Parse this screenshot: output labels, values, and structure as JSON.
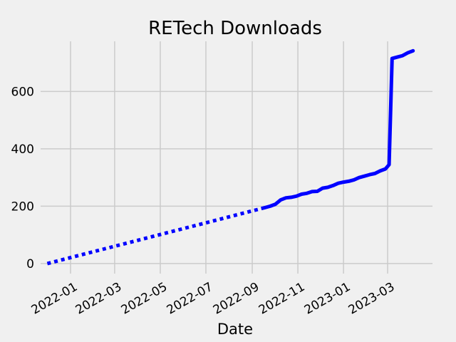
{
  "chart_data": {
    "type": "line",
    "title": "RETech Downloads",
    "xlabel": "Date",
    "ylabel": "",
    "x_axis_type": "date",
    "xlim": [
      "2021-11-22",
      "2023-04-30"
    ],
    "ylim": [
      -35,
      775
    ],
    "grid": true,
    "legend": "none",
    "x_ticks": [
      "2022-01",
      "2022-03",
      "2022-05",
      "2022-07",
      "2022-09",
      "2022-11",
      "2023-01",
      "2023-03"
    ],
    "y_ticks": [
      0,
      200,
      400,
      600
    ],
    "series": [
      {
        "style": "dotted",
        "color": "#0000ff",
        "points": [
          {
            "x": "2021-12-01",
            "y": 0
          },
          {
            "x": "2022-09-18",
            "y": 195
          }
        ]
      },
      {
        "style": "solid",
        "color": "#0000ff",
        "points": [
          {
            "x": "2022-09-18",
            "y": 195
          },
          {
            "x": "2022-09-25",
            "y": 200
          },
          {
            "x": "2022-10-02",
            "y": 207
          },
          {
            "x": "2022-10-09",
            "y": 222
          },
          {
            "x": "2022-10-16",
            "y": 229
          },
          {
            "x": "2022-10-23",
            "y": 231
          },
          {
            "x": "2022-10-30",
            "y": 235
          },
          {
            "x": "2022-11-06",
            "y": 242
          },
          {
            "x": "2022-11-13",
            "y": 245
          },
          {
            "x": "2022-11-20",
            "y": 251
          },
          {
            "x": "2022-11-27",
            "y": 252
          },
          {
            "x": "2022-12-04",
            "y": 263
          },
          {
            "x": "2022-12-11",
            "y": 266
          },
          {
            "x": "2022-12-18",
            "y": 272
          },
          {
            "x": "2022-12-25",
            "y": 280
          },
          {
            "x": "2023-01-01",
            "y": 284
          },
          {
            "x": "2023-01-08",
            "y": 287
          },
          {
            "x": "2023-01-15",
            "y": 292
          },
          {
            "x": "2023-01-22",
            "y": 300
          },
          {
            "x": "2023-01-29",
            "y": 305
          },
          {
            "x": "2023-02-05",
            "y": 310
          },
          {
            "x": "2023-02-12",
            "y": 314
          },
          {
            "x": "2023-02-19",
            "y": 323
          },
          {
            "x": "2023-02-26",
            "y": 330
          },
          {
            "x": "2023-03-03",
            "y": 345
          },
          {
            "x": "2023-03-07",
            "y": 715
          },
          {
            "x": "2023-03-14",
            "y": 720
          },
          {
            "x": "2023-03-21",
            "y": 725
          },
          {
            "x": "2023-03-28",
            "y": 735
          },
          {
            "x": "2023-04-04",
            "y": 742
          }
        ]
      }
    ]
  }
}
